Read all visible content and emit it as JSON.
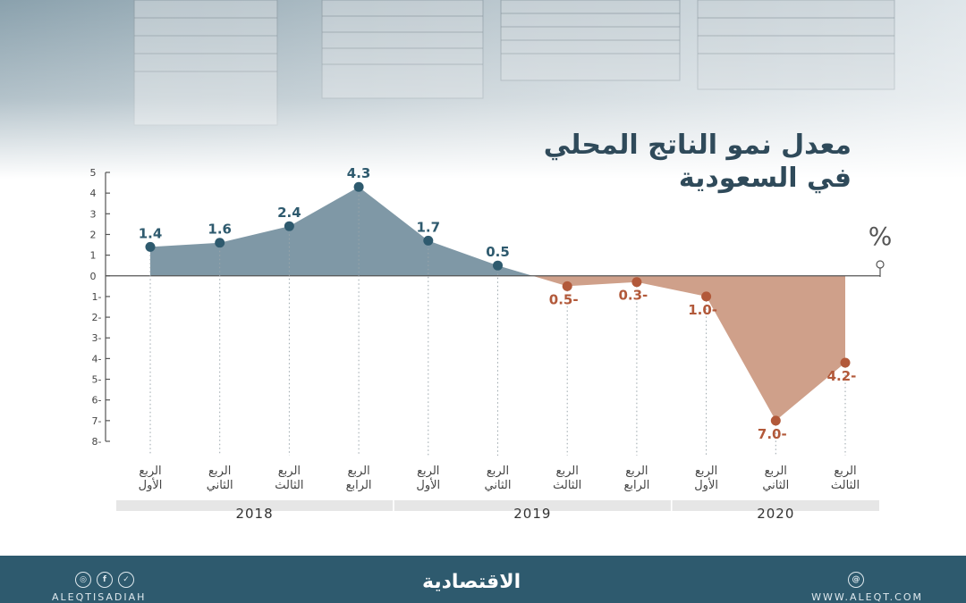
{
  "title_lines": [
    "معدل نمو الناتج المحلي",
    "في السعودية"
  ],
  "unit_label": "%",
  "footer": {
    "handle": "ALEQTISADIAH",
    "logo": "الاقتصادية",
    "website": "WWW.ALEQT.COM",
    "social_icons": [
      "instagram-icon",
      "facebook-icon",
      "twitter-icon"
    ],
    "web_icon": "globe-icon"
  },
  "colors": {
    "positive": "#2e5a6e",
    "positive_fill": "#7f98a6",
    "negative": "#b2593a",
    "negative_fill": "#cfa08a",
    "footer": "#2e5a6e"
  },
  "chart_data": {
    "type": "area",
    "title": "معدل نمو الناتج المحلي في السعودية",
    "ylabel": "%",
    "ylim": [
      -8,
      5
    ],
    "yticks": [
      "5",
      "4",
      "3",
      "2",
      "1",
      "0",
      "-1",
      "-2",
      "-3",
      "-4",
      "-5",
      "-6",
      "-7",
      "-8"
    ],
    "ytick_values": [
      5,
      4,
      3,
      2,
      1,
      0,
      -1,
      -2,
      -3,
      -4,
      -5,
      -6,
      -7,
      -8
    ],
    "categories": [
      [
        "الربع",
        "الأول"
      ],
      [
        "الربع",
        "الثاني"
      ],
      [
        "الربع",
        "الثالث"
      ],
      [
        "الربع",
        "الرابع"
      ],
      [
        "الربع",
        "الأول"
      ],
      [
        "الربع",
        "الثاني"
      ],
      [
        "الربع",
        "الثالث"
      ],
      [
        "الربع",
        "الرابع"
      ],
      [
        "الربع",
        "الأول"
      ],
      [
        "الربع",
        "الثاني"
      ],
      [
        "الربع",
        "الثالث"
      ]
    ],
    "values": [
      1.4,
      1.6,
      2.4,
      4.3,
      1.7,
      0.5,
      -0.5,
      -0.3,
      -1.0,
      -7.0,
      -4.2
    ],
    "data_labels": [
      "1.4",
      "1.6",
      "2.4",
      "4.3",
      "1.7",
      "0.5",
      "-0.5",
      "-0.3",
      "-1.0",
      "-7.0",
      "-4.2"
    ],
    "years": [
      {
        "label": "2018",
        "start": 0,
        "end": 3
      },
      {
        "label": "2019",
        "start": 4,
        "end": 7
      },
      {
        "label": "2020",
        "start": 8,
        "end": 10
      }
    ],
    "grid": false,
    "legend": "none"
  }
}
